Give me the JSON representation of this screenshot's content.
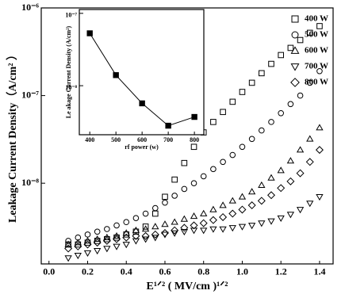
{
  "chart_data": [
    {
      "type": "scatter",
      "y_label": "Leakage Current Density（A/cm² ）",
      "x_label": "E¹ᐟ² ( MV/cm )¹ᐟ²",
      "x": [
        0.1,
        0.15,
        0.2,
        0.25,
        0.3,
        0.35,
        0.4,
        0.45,
        0.5,
        0.55,
        0.6,
        0.65,
        0.7,
        0.75,
        0.8,
        0.85,
        0.9,
        0.95,
        1.0,
        1.05,
        1.1,
        1.15,
        1.2,
        1.25,
        1.3,
        1.35,
        1.4
      ],
      "series": [
        {
          "name": "400 W",
          "marker": "square",
          "color": "#000000",
          "values": [
            2e-09,
            2e-09,
            2.1e-09,
            2.2e-09,
            2.3e-09,
            2.4e-09,
            2.6e-09,
            2.8e-09,
            3.2e-09,
            4.5e-09,
            7e-09,
            1.1e-08,
            1.7e-08,
            2.6e-08,
            3.8e-08,
            5e-08,
            6.5e-08,
            8.5e-08,
            1.1e-07,
            1.4e-07,
            1.8e-07,
            2.3e-07,
            2.9e-07,
            3.5e-07,
            4.3e-07,
            5.2e-07,
            6.2e-07
          ]
        },
        {
          "name": "500 W",
          "marker": "circle",
          "color": "#000000",
          "values": [
            2.2e-09,
            2.4e-09,
            2.6e-09,
            2.8e-09,
            3e-09,
            3.3e-09,
            3.6e-09,
            4e-09,
            4.5e-09,
            5.2e-09,
            6e-09,
            7.2e-09,
            8.6e-09,
            1e-08,
            1.2e-08,
            1.45e-08,
            1.75e-08,
            2.1e-08,
            2.6e-08,
            3.2e-08,
            4e-08,
            5e-08,
            6.3e-08,
            8e-08,
            1e-07,
            1.4e-07,
            1.9e-07
          ]
        },
        {
          "name": "600 W",
          "marker": "triangle",
          "color": "#000000",
          "values": [
            2e-09,
            2.1e-09,
            2.2e-09,
            2.3e-09,
            2.4e-09,
            2.5e-09,
            2.7e-09,
            2.9e-09,
            3e-09,
            3.2e-09,
            3.4e-09,
            3.6e-09,
            3.9e-09,
            4.2e-09,
            4.5e-09,
            5e-09,
            5.6e-09,
            6.3e-09,
            7e-09,
            8e-09,
            9.5e-09,
            1.15e-08,
            1.4e-08,
            1.8e-08,
            2.4e-08,
            3.2e-08,
            4.3e-08
          ]
        },
        {
          "name": "700 W",
          "marker": "triangle-down",
          "color": "#000000",
          "values": [
            1.4e-09,
            1.5e-09,
            1.6e-09,
            1.7e-09,
            1.8e-09,
            1.9e-09,
            2e-09,
            2.2e-09,
            2.3e-09,
            2.4e-09,
            2.6e-09,
            2.7e-09,
            2.8e-09,
            2.9e-09,
            2.9e-09,
            3e-09,
            3e-09,
            3.1e-09,
            3.2e-09,
            3.3e-09,
            3.5e-09,
            3.7e-09,
            4e-09,
            4.4e-09,
            5e-09,
            5.9e-09,
            7e-09
          ]
        },
        {
          "name": "800 W",
          "marker": "diamond",
          "color": "#000000",
          "values": [
            1.8e-09,
            1.9e-09,
            2e-09,
            2.1e-09,
            2.2e-09,
            2.3e-09,
            2.4e-09,
            2.5e-09,
            2.5e-09,
            2.6e-09,
            2.7e-09,
            2.9e-09,
            3.1e-09,
            3.3e-09,
            3.5e-09,
            3.8e-09,
            4.1e-09,
            4.5e-09,
            5e-09,
            5.6e-09,
            6.3e-09,
            7.3e-09,
            8.8e-09,
            1.05e-08,
            1.3e-08,
            1.75e-08,
            2.4e-08
          ]
        }
      ],
      "xlim": [
        -0.04,
        1.47
      ],
      "xticks": [
        {
          "value": 0,
          "label": "0.0"
        },
        0.2,
        0.4,
        0.6,
        0.8,
        {
          "value": 1,
          "label": "1.0"
        },
        1.2,
        1.4
      ],
      "ylim": [
        1.2e-09,
        1e-06
      ],
      "yticks": [
        {
          "value": 1e-08,
          "label": "10⁻⁸"
        },
        {
          "value": 1e-07,
          "label": "10⁻⁷"
        },
        {
          "value": 1e-06,
          "label": "10⁻⁶"
        }
      ],
      "log_y": true,
      "legend": "upper right"
    },
    {
      "type": "line",
      "y_label": "Le akage Current Density (A/cm²)",
      "x_label": "rf  power (w)",
      "x": [
        400,
        500,
        600,
        700,
        800
      ],
      "series": [
        {
          "marker": "square-filled",
          "color": "#000000",
          "values": [
            5.3e-08,
            1.4e-08,
            5.7e-09,
            2.8e-09,
            3.7e-09
          ]
        }
      ],
      "xlim": [
        360,
        836
      ],
      "xticks": [
        400,
        500,
        600,
        700,
        800
      ],
      "ylim": [
        2.1e-09,
        1.13e-07
      ],
      "yticks": [
        {
          "value": 1e-08,
          "label": "10⁻⁸"
        },
        {
          "value": 1e-07,
          "label": "10⁻⁷"
        }
      ],
      "log_y": true
    }
  ]
}
